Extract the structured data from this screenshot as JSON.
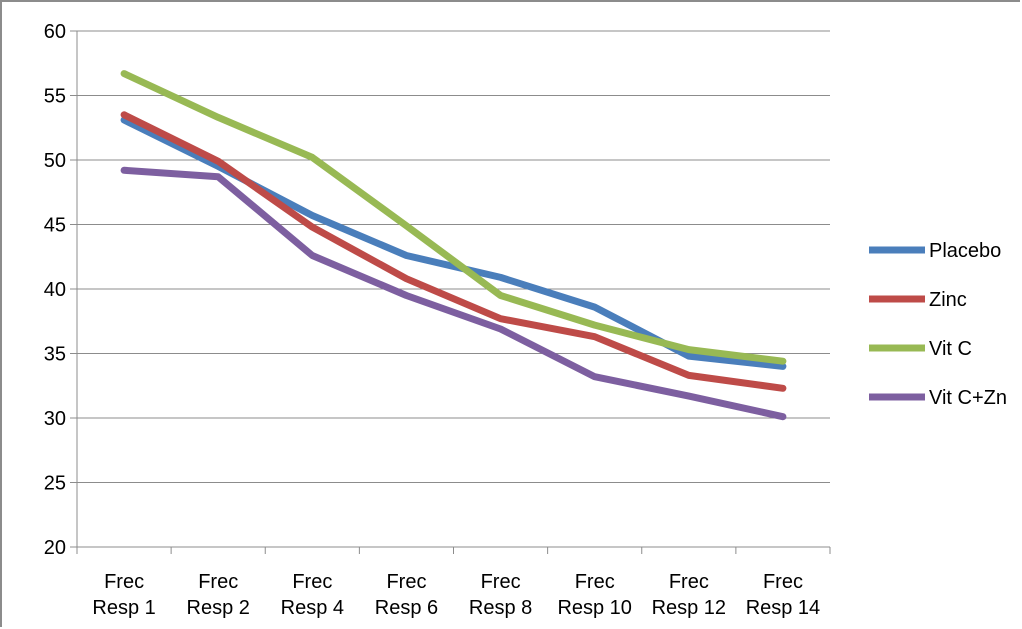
{
  "chart_data": {
    "type": "line",
    "title": "",
    "xlabel": "",
    "ylabel": "",
    "ylim": [
      20,
      60
    ],
    "yticks": [
      20,
      25,
      30,
      35,
      40,
      45,
      50,
      55,
      60
    ],
    "grid": true,
    "legend_position": "right",
    "categories": [
      [
        "Frec",
        "Resp 1"
      ],
      [
        "Frec",
        "Resp 2"
      ],
      [
        "Frec",
        "Resp 4"
      ],
      [
        "Frec",
        "Resp 6"
      ],
      [
        "Frec",
        "Resp 8"
      ],
      [
        "Frec",
        "Resp 10"
      ],
      [
        "Frec",
        "Resp 12"
      ],
      [
        "Frec",
        "Resp 14"
      ]
    ],
    "series": [
      {
        "name": "Placebo",
        "color": "#4a7ebb",
        "values": [
          53.1,
          49.5,
          45.7,
          42.6,
          40.9,
          38.6,
          34.8,
          34.0
        ]
      },
      {
        "name": "Zinc",
        "color": "#be4b48",
        "values": [
          53.5,
          49.9,
          44.8,
          40.8,
          37.7,
          36.3,
          33.3,
          32.3
        ]
      },
      {
        "name": "Vit C",
        "color": "#98b954",
        "values": [
          56.7,
          53.3,
          50.2,
          44.9,
          39.5,
          37.2,
          35.3,
          34.4
        ]
      },
      {
        "name": "Vit C+Zn",
        "color": "#7d5fa0",
        "values": [
          49.2,
          48.7,
          42.6,
          39.5,
          36.9,
          33.2,
          31.7,
          30.1
        ]
      }
    ]
  }
}
